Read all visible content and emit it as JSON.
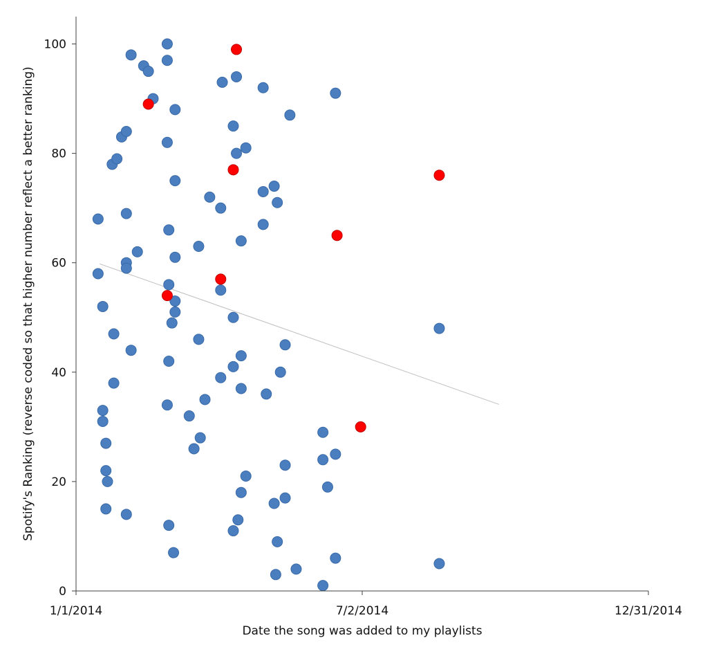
{
  "chart_data": {
    "type": "scatter",
    "title": "",
    "xlabel": "Date the song was added to my playlists",
    "ylabel": "Spotify's Ranking (reverse coded so that higher number reflect a better ranking)",
    "x_axis": {
      "scale": "date",
      "min": "2014-01-01",
      "max": "2014-12-31",
      "ticks": [
        {
          "value": "2014-01-01",
          "label": "1/1/2014"
        },
        {
          "value": "2014-07-02",
          "label": "7/2/2014"
        },
        {
          "value": "2014-12-31",
          "label": "12/31/2014"
        }
      ]
    },
    "y_axis": {
      "min": 0,
      "max": 105,
      "ticks": [
        {
          "value": 0,
          "label": "0"
        },
        {
          "value": 20,
          "label": "20"
        },
        {
          "value": 40,
          "label": "40"
        },
        {
          "value": 60,
          "label": "60"
        },
        {
          "value": 80,
          "label": "80"
        },
        {
          "value": 100,
          "label": "100"
        }
      ]
    },
    "grid": false,
    "legend": "none",
    "colors": {
      "blue": "#4a7ebf",
      "blue_edge": "#3a6aa8",
      "red": "#ff0000",
      "red_edge": "#c00000",
      "trend": "#bfbfbf",
      "axis": "#404040"
    },
    "trendline": {
      "from": {
        "x": "2014-01-16",
        "y": 59.8
      },
      "to": {
        "x": "2014-09-27",
        "y": 34.1
      }
    },
    "series": [
      {
        "color_key": "blue",
        "points": [
          {
            "x": "2014-01-15",
            "y": 68
          },
          {
            "x": "2014-01-15",
            "y": 58
          },
          {
            "x": "2014-01-18",
            "y": 52
          },
          {
            "x": "2014-01-18",
            "y": 33
          },
          {
            "x": "2014-01-18",
            "y": 31
          },
          {
            "x": "2014-01-20",
            "y": 27
          },
          {
            "x": "2014-01-20",
            "y": 22
          },
          {
            "x": "2014-01-21",
            "y": 20
          },
          {
            "x": "2014-01-20",
            "y": 15
          },
          {
            "x": "2014-01-24",
            "y": 78
          },
          {
            "x": "2014-01-27",
            "y": 79
          },
          {
            "x": "2014-01-25",
            "y": 47
          },
          {
            "x": "2014-01-25",
            "y": 38
          },
          {
            "x": "2014-01-30",
            "y": 83
          },
          {
            "x": "2014-02-02",
            "y": 84
          },
          {
            "x": "2014-02-02",
            "y": 69
          },
          {
            "x": "2014-02-02",
            "y": 60
          },
          {
            "x": "2014-02-02",
            "y": 59
          },
          {
            "x": "2014-02-02",
            "y": 14
          },
          {
            "x": "2014-02-05",
            "y": 98
          },
          {
            "x": "2014-02-05",
            "y": 44
          },
          {
            "x": "2014-02-09",
            "y": 62
          },
          {
            "x": "2014-02-13",
            "y": 96
          },
          {
            "x": "2014-02-16",
            "y": 95
          },
          {
            "x": "2014-02-19",
            "y": 90
          },
          {
            "x": "2014-02-28",
            "y": 100
          },
          {
            "x": "2014-02-28",
            "y": 97
          },
          {
            "x": "2014-02-28",
            "y": 82
          },
          {
            "x": "2014-03-01",
            "y": 66
          },
          {
            "x": "2014-03-01",
            "y": 56
          },
          {
            "x": "2014-03-01",
            "y": 42
          },
          {
            "x": "2014-02-28",
            "y": 34
          },
          {
            "x": "2014-03-01",
            "y": 12
          },
          {
            "x": "2014-03-05",
            "y": 88
          },
          {
            "x": "2014-03-05",
            "y": 75
          },
          {
            "x": "2014-03-05",
            "y": 61
          },
          {
            "x": "2014-03-05",
            "y": 53
          },
          {
            "x": "2014-03-05",
            "y": 51
          },
          {
            "x": "2014-03-03",
            "y": 49
          },
          {
            "x": "2014-03-04",
            "y": 7
          },
          {
            "x": "2014-03-14",
            "y": 32
          },
          {
            "x": "2014-03-17",
            "y": 26
          },
          {
            "x": "2014-03-20",
            "y": 63
          },
          {
            "x": "2014-03-20",
            "y": 46
          },
          {
            "x": "2014-03-21",
            "y": 28
          },
          {
            "x": "2014-03-24",
            "y": 35
          },
          {
            "x": "2014-03-27",
            "y": 72
          },
          {
            "x": "2014-04-04",
            "y": 93
          },
          {
            "x": "2014-04-03",
            "y": 70
          },
          {
            "x": "2014-04-03",
            "y": 55
          },
          {
            "x": "2014-04-03",
            "y": 39
          },
          {
            "x": "2014-04-11",
            "y": 85
          },
          {
            "x": "2014-04-11",
            "y": 50
          },
          {
            "x": "2014-04-11",
            "y": 41
          },
          {
            "x": "2014-04-11",
            "y": 11
          },
          {
            "x": "2014-04-13",
            "y": 94
          },
          {
            "x": "2014-04-13",
            "y": 80
          },
          {
            "x": "2014-04-14",
            "y": 13
          },
          {
            "x": "2014-04-16",
            "y": 64
          },
          {
            "x": "2014-04-16",
            "y": 43
          },
          {
            "x": "2014-04-16",
            "y": 37
          },
          {
            "x": "2014-04-16",
            "y": 18
          },
          {
            "x": "2014-04-19",
            "y": 81
          },
          {
            "x": "2014-04-19",
            "y": 21
          },
          {
            "x": "2014-04-30",
            "y": 92
          },
          {
            "x": "2014-04-30",
            "y": 73
          },
          {
            "x": "2014-04-30",
            "y": 67
          },
          {
            "x": "2014-05-02",
            "y": 36
          },
          {
            "x": "2014-05-07",
            "y": 74
          },
          {
            "x": "2014-05-07",
            "y": 16
          },
          {
            "x": "2014-05-09",
            "y": 71
          },
          {
            "x": "2014-05-09",
            "y": 9
          },
          {
            "x": "2014-05-11",
            "y": 40
          },
          {
            "x": "2014-05-08",
            "y": 3
          },
          {
            "x": "2014-05-14",
            "y": 45
          },
          {
            "x": "2014-05-14",
            "y": 23
          },
          {
            "x": "2014-05-14",
            "y": 17
          },
          {
            "x": "2014-05-17",
            "y": 87
          },
          {
            "x": "2014-05-21",
            "y": 4
          },
          {
            "x": "2014-06-07",
            "y": 29
          },
          {
            "x": "2014-06-07",
            "y": 24
          },
          {
            "x": "2014-06-07",
            "y": 1
          },
          {
            "x": "2014-06-10",
            "y": 19
          },
          {
            "x": "2014-06-15",
            "y": 91
          },
          {
            "x": "2014-06-15",
            "y": 25
          },
          {
            "x": "2014-06-15",
            "y": 6
          },
          {
            "x": "2014-08-20",
            "y": 48
          },
          {
            "x": "2014-08-20",
            "y": 5
          }
        ]
      },
      {
        "color_key": "red",
        "points": [
          {
            "x": "2014-02-16",
            "y": 89
          },
          {
            "x": "2014-02-28",
            "y": 54
          },
          {
            "x": "2014-04-03",
            "y": 57
          },
          {
            "x": "2014-04-11",
            "y": 77
          },
          {
            "x": "2014-04-13",
            "y": 99
          },
          {
            "x": "2014-06-16",
            "y": 65
          },
          {
            "x": "2014-07-01",
            "y": 30
          },
          {
            "x": "2014-08-20",
            "y": 76
          }
        ]
      }
    ]
  }
}
